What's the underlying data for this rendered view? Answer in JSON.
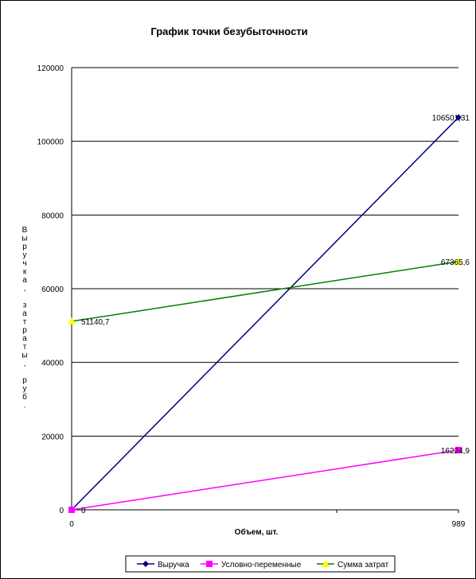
{
  "chart_data": {
    "type": "line",
    "title": "График точки безубыточности",
    "xlabel": "Объем, шт.",
    "ylabel": "Выручка, затраты, руб.",
    "x": [
      0,
      989
    ],
    "x_tick_labels": [
      "0",
      "989"
    ],
    "ylim": [
      0,
      120000
    ],
    "y_ticks": [
      0,
      20000,
      40000,
      60000,
      80000,
      100000,
      120000
    ],
    "y_tick_labels": [
      "0",
      "20000",
      "40000",
      "60000",
      "80000",
      "100000",
      "120000"
    ],
    "grid": true,
    "legend_position": "bottom",
    "series": [
      {
        "name": "Выручка",
        "values": [
          0,
          106501.31
        ],
        "color": "#000080",
        "marker": "diamond",
        "data_labels": [
          "0",
          "106501,31"
        ]
      },
      {
        "name": "Условно-переменные",
        "values": [
          0,
          16224.9
        ],
        "color": "#ff00ff",
        "marker": "square",
        "data_labels": [
          "",
          "16224,9"
        ]
      },
      {
        "name": "Сумма затрат",
        "values": [
          51140.7,
          67365.6
        ],
        "color": "#008000",
        "marker": "triangle",
        "marker_color": "#ffff00",
        "data_labels": [
          "51140,7",
          "67365,6"
        ]
      }
    ]
  }
}
